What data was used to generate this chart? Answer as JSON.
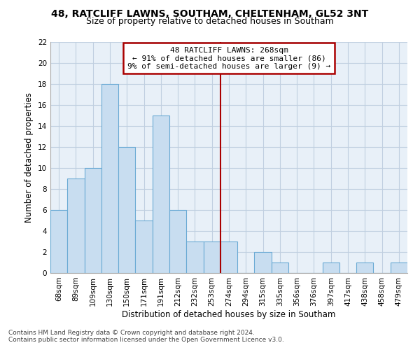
{
  "title": "48, RATCLIFF LAWNS, SOUTHAM, CHELTENHAM, GL52 3NT",
  "subtitle": "Size of property relative to detached houses in Southam",
  "xlabel": "Distribution of detached houses by size in Southam",
  "ylabel": "Number of detached properties",
  "bin_labels": [
    "68sqm",
    "89sqm",
    "109sqm",
    "130sqm",
    "150sqm",
    "171sqm",
    "191sqm",
    "212sqm",
    "232sqm",
    "253sqm",
    "274sqm",
    "294sqm",
    "315sqm",
    "335sqm",
    "356sqm",
    "376sqm",
    "397sqm",
    "417sqm",
    "438sqm",
    "458sqm",
    "479sqm"
  ],
  "bar_values": [
    6,
    9,
    10,
    18,
    12,
    5,
    15,
    6,
    3,
    3,
    3,
    0,
    2,
    1,
    0,
    0,
    1,
    0,
    1,
    0,
    1
  ],
  "bar_color": "#c8ddf0",
  "bar_edge_color": "#6aaad4",
  "vline_color": "#aa0000",
  "ylim": [
    0,
    22
  ],
  "yticks": [
    0,
    2,
    4,
    6,
    8,
    10,
    12,
    14,
    16,
    18,
    20,
    22
  ],
  "annotation_text": "48 RATCLIFF LAWNS: 268sqm\n← 91% of detached houses are smaller (86)\n9% of semi-detached houses are larger (9) →",
  "footer_line1": "Contains HM Land Registry data © Crown copyright and database right 2024.",
  "footer_line2": "Contains public sector information licensed under the Open Government Licence v3.0.",
  "title_fontsize": 10,
  "subtitle_fontsize": 9,
  "axis_label_fontsize": 8.5,
  "tick_fontsize": 7.5,
  "annotation_fontsize": 8,
  "footer_fontsize": 6.5,
  "bg_color": "#e8f0f8",
  "grid_color": "#c0cfe0"
}
